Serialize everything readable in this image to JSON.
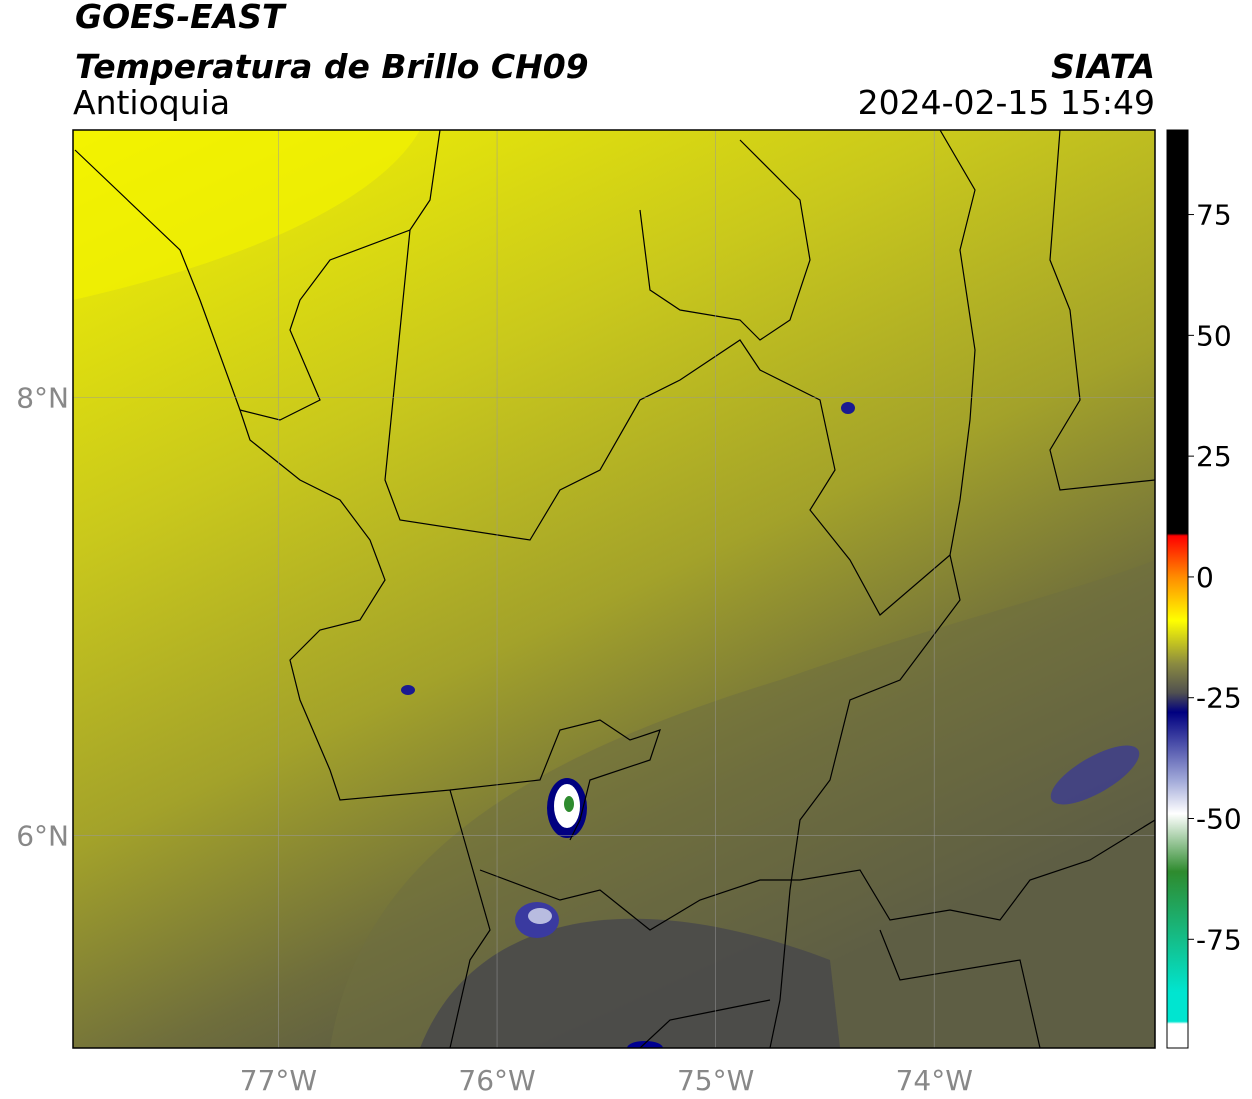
{
  "header": {
    "title": "GOES-EAST",
    "subtitle": "Temperatura de Brillo CH09",
    "region": "Antioquia",
    "source": "SIATA",
    "timestamp": "2024-02-15 15:49"
  },
  "map": {
    "xlim": [
      -77.94,
      -72.99
    ],
    "ylim": [
      5.03,
      9.22
    ],
    "xticks": [
      {
        "value": -77,
        "label": "77°W"
      },
      {
        "value": -76,
        "label": "76°W"
      },
      {
        "value": -75,
        "label": "75°W"
      },
      {
        "value": -74,
        "label": "74°W"
      }
    ],
    "yticks": [
      {
        "value": 6,
        "label": "6°N"
      },
      {
        "value": 8,
        "label": "8°N"
      }
    ],
    "grid": true
  },
  "colorbar": {
    "lim": [
      -97.5,
      92.5
    ],
    "ticks": [
      75,
      50,
      25,
      0,
      -25,
      -50,
      -75
    ],
    "colormap": [
      {
        "value": 92.5,
        "color": "#000000"
      },
      {
        "value": 9,
        "color": "#000000"
      },
      {
        "value": 8.5,
        "color": "#ff0000"
      },
      {
        "value": 0,
        "color": "#ff8c00"
      },
      {
        "value": -9,
        "color": "#ffff00"
      },
      {
        "value": -18,
        "color": "#8a8a40"
      },
      {
        "value": -24,
        "color": "#505050"
      },
      {
        "value": -28,
        "color": "#000080"
      },
      {
        "value": -42,
        "color": "#a0a8d8"
      },
      {
        "value": -49,
        "color": "#ffffff"
      },
      {
        "value": -61,
        "color": "#2e8b2e"
      },
      {
        "value": -86,
        "color": "#00e5d0"
      },
      {
        "value": -92,
        "color": "#00e5d0"
      },
      {
        "value": -92.5,
        "color": "#ffffff"
      },
      {
        "value": -97.5,
        "color": "#ffffff"
      }
    ]
  }
}
